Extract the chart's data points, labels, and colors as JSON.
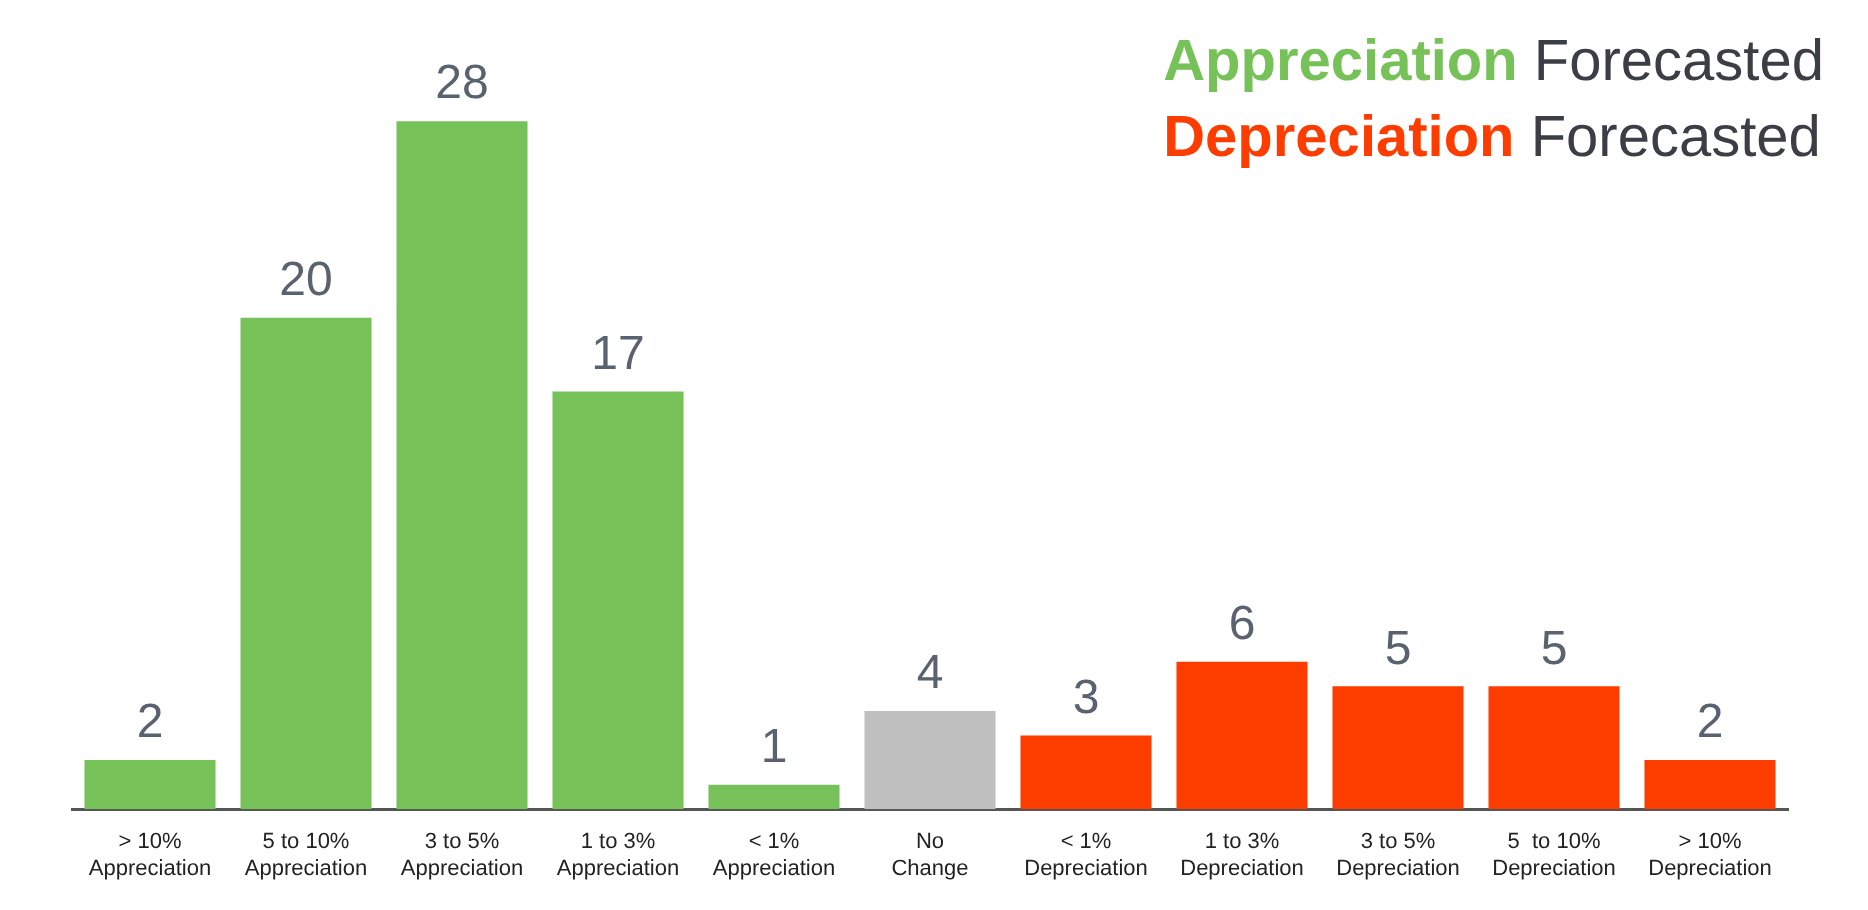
{
  "chart_data": {
    "type": "bar",
    "categories": [
      "> 10%\nAppreciation",
      "5 to 10%\nAppreciation",
      "3 to 5%\nAppreciation",
      "1 to 3%\nAppreciation",
      "< 1%\nAppreciation",
      "No\nChange",
      "< 1%\nDepreciation",
      "1 to 3%\nDepreciation",
      "3 to 5%\nDepreciation",
      "5  to 10%\nDepreciation",
      "> 10%\nDepreciation"
    ],
    "series": [
      {
        "name": "Appreciation Forecasted",
        "color": "#77c159",
        "values": [
          2,
          20,
          28,
          17,
          1,
          null,
          null,
          null,
          null,
          null,
          null
        ]
      },
      {
        "color": "#bfbfbf",
        "values": [
          null,
          null,
          null,
          null,
          null,
          4,
          null,
          null,
          null,
          null,
          null
        ]
      },
      {
        "name": "Depreciation Forecasted",
        "color": "#fd3d00",
        "values": [
          null,
          null,
          null,
          null,
          null,
          null,
          3,
          6,
          5,
          5,
          2
        ]
      }
    ],
    "data_labels": true,
    "legend": "top right",
    "grid": false,
    "tick_labels": "x"
  }
}
